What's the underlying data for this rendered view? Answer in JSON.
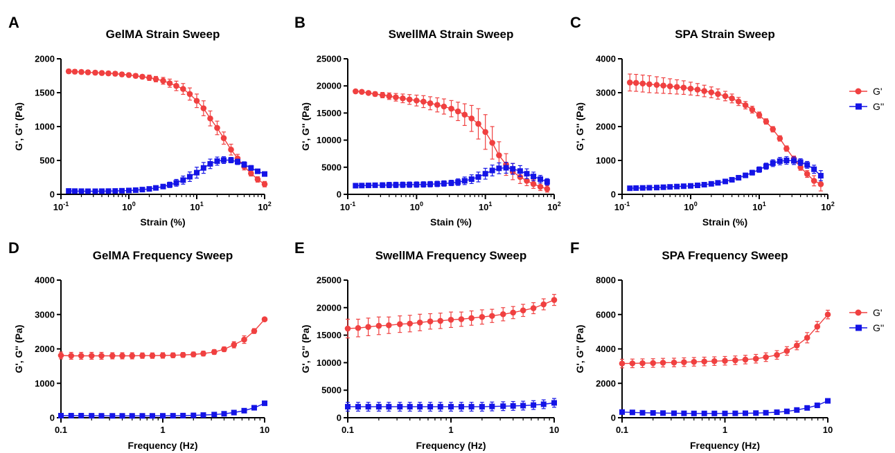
{
  "colors": {
    "g_prime": "#f04040",
    "g_double": "#1414e6"
  },
  "legend": [
    {
      "label": "G'",
      "color": "#f04040",
      "marker": "circle"
    },
    {
      "label": "G''",
      "color": "#1414e6",
      "marker": "square"
    }
  ],
  "chart_data": [
    {
      "id": "A",
      "letter": "A",
      "type": "line",
      "title": "GelMA Strain Sweep",
      "xlabel": "Strain (%)",
      "ylabel": "G', G'' (Pa)",
      "xscale": "log",
      "xlim": [
        0.1,
        100
      ],
      "ylim": [
        0,
        2000
      ],
      "xticks": [
        {
          "v": 0.1,
          "b": "10",
          "e": "-1"
        },
        {
          "v": 1,
          "b": "10",
          "e": "0"
        },
        {
          "v": 10,
          "b": "10",
          "e": "1"
        },
        {
          "v": 100,
          "b": "10",
          "e": "2"
        }
      ],
      "yticks": [
        {
          "v": 0,
          "t": "0"
        },
        {
          "v": 500,
          "t": "500"
        },
        {
          "v": 1000,
          "t": "1000"
        },
        {
          "v": 1500,
          "t": "1500"
        },
        {
          "v": 2000,
          "t": "2000"
        }
      ],
      "x": [
        0.13,
        0.16,
        0.2,
        0.25,
        0.32,
        0.4,
        0.5,
        0.63,
        0.79,
        1,
        1.26,
        1.58,
        2,
        2.5,
        3.2,
        4,
        5,
        6.3,
        7.9,
        10,
        12.6,
        15.8,
        20,
        25,
        32,
        40,
        50,
        63,
        79,
        100
      ],
      "series": [
        {
          "name": "G'",
          "values": [
            1815,
            1810,
            1805,
            1800,
            1795,
            1790,
            1785,
            1780,
            1770,
            1760,
            1748,
            1735,
            1720,
            1700,
            1675,
            1640,
            1600,
            1555,
            1480,
            1380,
            1270,
            1120,
            980,
            830,
            660,
            530,
            410,
            310,
            220,
            150
          ],
          "errors": [
            30,
            30,
            30,
            30,
            30,
            30,
            30,
            30,
            30,
            30,
            30,
            30,
            40,
            40,
            50,
            60,
            70,
            80,
            90,
            100,
            110,
            110,
            100,
            90,
            80,
            60,
            50,
            40,
            40,
            40
          ]
        },
        {
          "name": "G''",
          "values": [
            50,
            48,
            47,
            46,
            46,
            47,
            48,
            50,
            53,
            57,
            62,
            70,
            80,
            95,
            115,
            140,
            170,
            210,
            260,
            320,
            390,
            450,
            490,
            505,
            505,
            480,
            440,
            390,
            340,
            300
          ],
          "errors": [
            10,
            10,
            10,
            10,
            10,
            10,
            10,
            10,
            10,
            10,
            10,
            15,
            20,
            25,
            30,
            40,
            50,
            60,
            70,
            80,
            80,
            70,
            60,
            50,
            40,
            40,
            40,
            35,
            30,
            30
          ]
        }
      ]
    },
    {
      "id": "B",
      "letter": "B",
      "type": "line",
      "title": "SwellMA Strain Sweep",
      "xlabel": "Stain (%)",
      "ylabel": "G', G'' (Pa)",
      "xscale": "log",
      "xlim": [
        0.1,
        100
      ],
      "ylim": [
        0,
        25000
      ],
      "xticks": [
        {
          "v": 0.1,
          "b": "10",
          "e": "-1"
        },
        {
          "v": 1,
          "b": "10",
          "e": "0"
        },
        {
          "v": 10,
          "b": "10",
          "e": "1"
        },
        {
          "v": 100,
          "b": "10",
          "e": "2"
        }
      ],
      "yticks": [
        {
          "v": 0,
          "t": "0"
        },
        {
          "v": 5000,
          "t": "5000"
        },
        {
          "v": 10000,
          "t": "10000"
        },
        {
          "v": 15000,
          "t": "15000"
        },
        {
          "v": 20000,
          "t": "20000"
        },
        {
          "v": 25000,
          "t": "25000"
        }
      ],
      "x": [
        0.13,
        0.16,
        0.2,
        0.25,
        0.32,
        0.4,
        0.5,
        0.63,
        0.79,
        1,
        1.26,
        1.58,
        2,
        2.5,
        3.2,
        4,
        5,
        6.3,
        7.9,
        10,
        12.6,
        15.8,
        20,
        25,
        32,
        40,
        50,
        63,
        79
      ],
      "series": [
        {
          "name": "G'",
          "values": [
            19000,
            18900,
            18700,
            18500,
            18300,
            18100,
            17900,
            17700,
            17500,
            17300,
            17100,
            16800,
            16500,
            16200,
            15800,
            15300,
            14700,
            14000,
            13000,
            11500,
            9500,
            7200,
            5500,
            4200,
            3200,
            2500,
            1900,
            1400,
            1000
          ],
          "errors": [
            200,
            250,
            300,
            400,
            500,
            600,
            700,
            800,
            900,
            1000,
            1100,
            1200,
            1300,
            1400,
            1500,
            1700,
            2000,
            2400,
            2800,
            3200,
            3000,
            2500,
            2000,
            1500,
            1200,
            900,
            800,
            700,
            600
          ]
        },
        {
          "name": "G''",
          "values": [
            1600,
            1620,
            1650,
            1680,
            1700,
            1720,
            1740,
            1760,
            1780,
            1800,
            1830,
            1870,
            1920,
            2000,
            2100,
            2250,
            2500,
            2800,
            3200,
            3800,
            4400,
            4800,
            4900,
            4700,
            4300,
            3800,
            3300,
            2800,
            2300
          ],
          "errors": [
            300,
            300,
            350,
            400,
            450,
            500,
            500,
            500,
            500,
            500,
            500,
            500,
            500,
            500,
            500,
            600,
            700,
            800,
            900,
            1000,
            1000,
            1000,
            1000,
            1000,
            1000,
            900,
            800,
            700,
            600
          ]
        }
      ]
    },
    {
      "id": "C",
      "letter": "C",
      "type": "line",
      "title": "SPA Strain Sweep",
      "xlabel": "Strain (%)",
      "ylabel": "G', G'' (Pa)",
      "xscale": "log",
      "xlim": [
        0.1,
        100
      ],
      "ylim": [
        0,
        4000
      ],
      "xticks": [
        {
          "v": 0.1,
          "b": "10",
          "e": "-1"
        },
        {
          "v": 1,
          "b": "10",
          "e": "0"
        },
        {
          "v": 10,
          "b": "10",
          "e": "1"
        },
        {
          "v": 100,
          "b": "10",
          "e": "2"
        }
      ],
      "yticks": [
        {
          "v": 0,
          "t": "0"
        },
        {
          "v": 1000,
          "t": "1000"
        },
        {
          "v": 2000,
          "t": "2000"
        },
        {
          "v": 3000,
          "t": "3000"
        },
        {
          "v": 4000,
          "t": "4000"
        }
      ],
      "x": [
        0.13,
        0.16,
        0.2,
        0.25,
        0.32,
        0.4,
        0.5,
        0.63,
        0.79,
        1,
        1.26,
        1.58,
        2,
        2.5,
        3.2,
        4,
        5,
        6.3,
        7.9,
        10,
        12.6,
        15.8,
        20,
        25,
        32,
        40,
        50,
        63,
        79
      ],
      "series": [
        {
          "name": "G'",
          "values": [
            3300,
            3290,
            3270,
            3250,
            3230,
            3210,
            3190,
            3170,
            3150,
            3120,
            3090,
            3050,
            3010,
            2960,
            2900,
            2830,
            2740,
            2630,
            2500,
            2340,
            2150,
            1920,
            1650,
            1350,
            1050,
            800,
            600,
            400,
            300
          ],
          "errors": [
            250,
            250,
            250,
            250,
            240,
            230,
            220,
            210,
            200,
            190,
            180,
            170,
            160,
            150,
            140,
            130,
            120,
            110,
            100,
            90,
            80,
            80,
            80,
            80,
            80,
            90,
            100,
            150,
            200
          ]
        },
        {
          "name": "G''",
          "values": [
            180,
            185,
            190,
            195,
            200,
            210,
            220,
            230,
            240,
            250,
            265,
            285,
            310,
            340,
            380,
            430,
            490,
            560,
            640,
            730,
            830,
            920,
            980,
            1000,
            990,
            950,
            870,
            740,
            550
          ],
          "errors": [
            30,
            30,
            30,
            30,
            30,
            30,
            30,
            30,
            30,
            30,
            30,
            30,
            30,
            30,
            40,
            40,
            50,
            60,
            70,
            80,
            90,
            100,
            110,
            110,
            110,
            100,
            100,
            120,
            150
          ]
        }
      ]
    },
    {
      "id": "D",
      "letter": "D",
      "type": "line",
      "title": "GelMA Frequency Sweep",
      "xlabel": "Frequency (Hz)",
      "ylabel": "G', G'' (Pa)",
      "xscale": "log",
      "xlim": [
        0.1,
        10
      ],
      "ylim": [
        0,
        4000
      ],
      "xticks": [
        {
          "v": 0.1,
          "t": "0.1"
        },
        {
          "v": 1,
          "t": "1"
        },
        {
          "v": 10,
          "t": "10"
        }
      ],
      "yticks": [
        {
          "v": 0,
          "t": "0"
        },
        {
          "v": 1000,
          "t": "1000"
        },
        {
          "v": 2000,
          "t": "2000"
        },
        {
          "v": 3000,
          "t": "3000"
        },
        {
          "v": 4000,
          "t": "4000"
        }
      ],
      "x": [
        0.1,
        0.126,
        0.158,
        0.2,
        0.25,
        0.32,
        0.4,
        0.5,
        0.63,
        0.79,
        1,
        1.26,
        1.58,
        2,
        2.5,
        3.2,
        4,
        5,
        6.3,
        7.9,
        10
      ],
      "series": [
        {
          "name": "G'",
          "values": [
            1810,
            1800,
            1800,
            1800,
            1800,
            1800,
            1800,
            1800,
            1805,
            1805,
            1810,
            1815,
            1825,
            1840,
            1865,
            1910,
            1990,
            2120,
            2270,
            2520,
            2860
          ],
          "errors": [
            100,
            100,
            100,
            100,
            100,
            90,
            90,
            90,
            80,
            80,
            80,
            70,
            70,
            70,
            70,
            70,
            70,
            90,
            110,
            70,
            40
          ]
        },
        {
          "name": "G''",
          "values": [
            60,
            60,
            60,
            58,
            56,
            55,
            55,
            55,
            55,
            55,
            56,
            58,
            62,
            68,
            78,
            92,
            115,
            150,
            205,
            290,
            420
          ],
          "errors": [
            20,
            20,
            20,
            20,
            20,
            20,
            20,
            20,
            20,
            20,
            20,
            20,
            20,
            20,
            20,
            20,
            20,
            25,
            30,
            40,
            50
          ]
        }
      ]
    },
    {
      "id": "E",
      "letter": "E",
      "type": "line",
      "title": "SwellMA Frequency Sweep",
      "xlabel": "Frequency (Hz)",
      "ylabel": "G', G'' (Pa)",
      "xscale": "log",
      "xlim": [
        0.1,
        10
      ],
      "ylim": [
        0,
        25000
      ],
      "xticks": [
        {
          "v": 0.1,
          "t": "0.1"
        },
        {
          "v": 1,
          "t": "1"
        },
        {
          "v": 10,
          "t": "10"
        }
      ],
      "yticks": [
        {
          "v": 0,
          "t": "0"
        },
        {
          "v": 5000,
          "t": "5000"
        },
        {
          "v": 10000,
          "t": "10000"
        },
        {
          "v": 15000,
          "t": "15000"
        },
        {
          "v": 20000,
          "t": "20000"
        },
        {
          "v": 25000,
          "t": "25000"
        }
      ],
      "x": [
        0.1,
        0.126,
        0.158,
        0.2,
        0.25,
        0.32,
        0.4,
        0.5,
        0.63,
        0.79,
        1,
        1.26,
        1.58,
        2,
        2.5,
        3.2,
        4,
        5,
        6.3,
        7.9,
        10
      ],
      "series": [
        {
          "name": "G'",
          "values": [
            16200,
            16300,
            16500,
            16700,
            16800,
            17000,
            17100,
            17300,
            17500,
            17600,
            17800,
            17900,
            18100,
            18300,
            18500,
            18800,
            19100,
            19500,
            19900,
            20600,
            21400
          ],
          "errors": [
            1700,
            1600,
            1600,
            1600,
            1500,
            1500,
            1500,
            1500,
            1400,
            1400,
            1400,
            1300,
            1300,
            1300,
            1200,
            1200,
            1100,
            1100,
            1000,
            1000,
            1000
          ]
        },
        {
          "name": "G''",
          "values": [
            2000,
            2000,
            2000,
            2000,
            2000,
            2000,
            2000,
            2000,
            2000,
            2000,
            2000,
            2000,
            2000,
            2000,
            2050,
            2100,
            2150,
            2200,
            2300,
            2450,
            2700
          ],
          "errors": [
            800,
            800,
            800,
            800,
            800,
            800,
            800,
            800,
            800,
            800,
            800,
            800,
            800,
            800,
            800,
            800,
            800,
            800,
            800,
            800,
            800
          ]
        }
      ]
    },
    {
      "id": "F",
      "letter": "F",
      "type": "line",
      "title": "SPA Frequency Sweep",
      "xlabel": "Frequency (Hz)",
      "ylabel": "G', G'' (Pa)",
      "xscale": "log",
      "xlim": [
        0.1,
        10
      ],
      "ylim": [
        0,
        8000
      ],
      "xticks": [
        {
          "v": 0.1,
          "t": "0.1"
        },
        {
          "v": 1,
          "t": "1"
        },
        {
          "v": 10,
          "t": "10"
        }
      ],
      "yticks": [
        {
          "v": 0,
          "t": "0"
        },
        {
          "v": 2000,
          "t": "2000"
        },
        {
          "v": 4000,
          "t": "4000"
        },
        {
          "v": 6000,
          "t": "6000"
        },
        {
          "v": 8000,
          "t": "8000"
        }
      ],
      "x": [
        0.1,
        0.126,
        0.158,
        0.2,
        0.25,
        0.32,
        0.4,
        0.5,
        0.63,
        0.79,
        1,
        1.26,
        1.58,
        2,
        2.5,
        3.2,
        4,
        5,
        6.3,
        7.9,
        10
      ],
      "series": [
        {
          "name": "G'",
          "values": [
            3150,
            3160,
            3170,
            3180,
            3200,
            3210,
            3230,
            3250,
            3270,
            3290,
            3310,
            3340,
            3380,
            3430,
            3520,
            3650,
            3880,
            4200,
            4650,
            5300,
            6000
          ],
          "errors": [
            250,
            250,
            250,
            250,
            250,
            250,
            250,
            250,
            250,
            250,
            250,
            250,
            250,
            250,
            250,
            250,
            250,
            250,
            300,
            300,
            250
          ]
        },
        {
          "name": "G''",
          "values": [
            330,
            310,
            290,
            280,
            270,
            260,
            255,
            250,
            250,
            250,
            250,
            255,
            260,
            270,
            290,
            320,
            370,
            450,
            570,
            720,
            980
          ],
          "errors": [
            40,
            40,
            40,
            40,
            40,
            40,
            40,
            40,
            40,
            40,
            40,
            40,
            40,
            40,
            40,
            40,
            40,
            40,
            50,
            60,
            80
          ]
        }
      ]
    }
  ]
}
